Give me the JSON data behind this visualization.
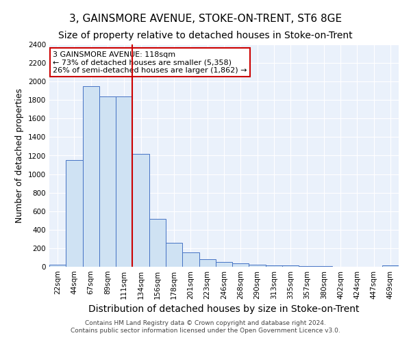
{
  "title": "3, GAINSMORE AVENUE, STOKE-ON-TRENT, ST6 8GE",
  "subtitle": "Size of property relative to detached houses in Stoke-on-Trent",
  "xlabel": "Distribution of detached houses by size in Stoke-on-Trent",
  "ylabel": "Number of detached properties",
  "bin_labels": [
    "22sqm",
    "44sqm",
    "67sqm",
    "89sqm",
    "111sqm",
    "134sqm",
    "156sqm",
    "178sqm",
    "201sqm",
    "223sqm",
    "246sqm",
    "268sqm",
    "290sqm",
    "313sqm",
    "335sqm",
    "357sqm",
    "380sqm",
    "402sqm",
    "424sqm",
    "447sqm",
    "469sqm"
  ],
  "bar_values": [
    25,
    1155,
    1950,
    1840,
    1840,
    1215,
    520,
    260,
    155,
    80,
    50,
    40,
    20,
    15,
    12,
    5,
    5,
    3,
    3,
    3,
    18
  ],
  "bar_color": "#cfe2f3",
  "bar_edge_color": "#4472c4",
  "vline_x": 4.5,
  "vline_color": "#cc0000",
  "annotation_text": "3 GAINSMORE AVENUE: 118sqm\n← 73% of detached houses are smaller (5,358)\n26% of semi-detached houses are larger (1,862) →",
  "annotation_box_color": "white",
  "annotation_box_edge": "#cc0000",
  "ylim": [
    0,
    2400
  ],
  "yticks": [
    0,
    200,
    400,
    600,
    800,
    1000,
    1200,
    1400,
    1600,
    1800,
    2000,
    2200,
    2400
  ],
  "footer_line1": "Contains HM Land Registry data © Crown copyright and database right 2024.",
  "footer_line2": "Contains public sector information licensed under the Open Government Licence v3.0.",
  "bg_color": "#eaf1fb",
  "grid_color": "white",
  "title_fontsize": 11,
  "xlabel_fontsize": 10,
  "ylabel_fontsize": 9,
  "tick_fontsize": 7.5,
  "footer_fontsize": 6.5
}
